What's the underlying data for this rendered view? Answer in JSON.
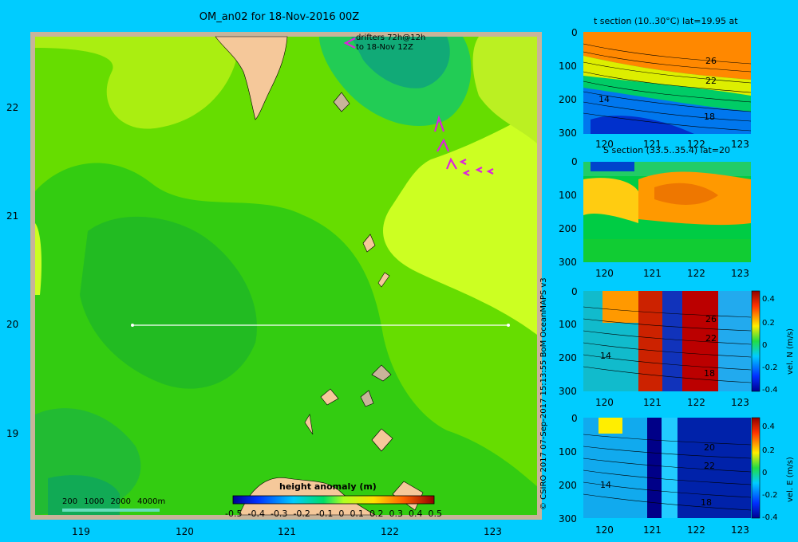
{
  "main_map": {
    "title": "OM_an02 for 18-Nov-2016 00Z",
    "x_ticks": [
      "119",
      "120",
      "121",
      "122",
      "123"
    ],
    "y_ticks": [
      "22",
      "21",
      "20",
      "19"
    ],
    "drifters_label_line1": "drifters 72h@12h",
    "drifters_label_line2": "to 18-Nov 12Z",
    "depth_legend": [
      "200",
      "1000",
      "2000",
      "4000m"
    ],
    "colorbar_title": "height anomaly (m)",
    "colorbar_ticks": [
      "-0.5",
      "-0.4",
      "-0.3",
      "-0.2",
      "-0.1",
      "0",
      "0.1",
      "0.2",
      "0.3",
      "0.4",
      "0.5"
    ]
  },
  "panels": [
    {
      "title": "t section (10..30°C) lat=19.95 at",
      "y_ticks": [
        "0",
        "100",
        "200",
        "300"
      ],
      "x_ticks": [
        "120",
        "121",
        "122",
        "123"
      ],
      "contour_labels": [
        "26",
        "22",
        "14",
        "18"
      ]
    },
    {
      "title": "S section (33.5..35.4) lat=20",
      "y_ticks": [
        "0",
        "100",
        "200",
        "300"
      ],
      "x_ticks": [
        "120",
        "121",
        "122",
        "123"
      ]
    },
    {
      "title": "",
      "y_ticks": [
        "0",
        "100",
        "200",
        "300"
      ],
      "x_ticks": [
        "120",
        "121",
        "122",
        "123"
      ],
      "contour_labels": [
        "26",
        "22",
        "14",
        "18"
      ],
      "colorbar_label": "vel. N (m/s)",
      "colorbar_ticks": [
        "0.4",
        "0.2",
        "0",
        "-0.2",
        "-0.4"
      ]
    },
    {
      "title": "",
      "y_ticks": [
        "0",
        "100",
        "200",
        "300"
      ],
      "x_ticks": [
        "120",
        "121",
        "122",
        "123"
      ],
      "contour_labels": [
        "20",
        "22",
        "14",
        "18"
      ],
      "colorbar_label": "vel. E (m/s)",
      "colorbar_ticks": [
        "0.4",
        "0.2",
        "0",
        "-0.2",
        "-0.4"
      ]
    }
  ],
  "credit": "© CSIRO 2017   07-Sep-2017 15:13:55 BoM OceanMAPS v3",
  "colors": {
    "background": "#00ccff",
    "land": "#f5c89a",
    "frame": "#c8b49a"
  }
}
